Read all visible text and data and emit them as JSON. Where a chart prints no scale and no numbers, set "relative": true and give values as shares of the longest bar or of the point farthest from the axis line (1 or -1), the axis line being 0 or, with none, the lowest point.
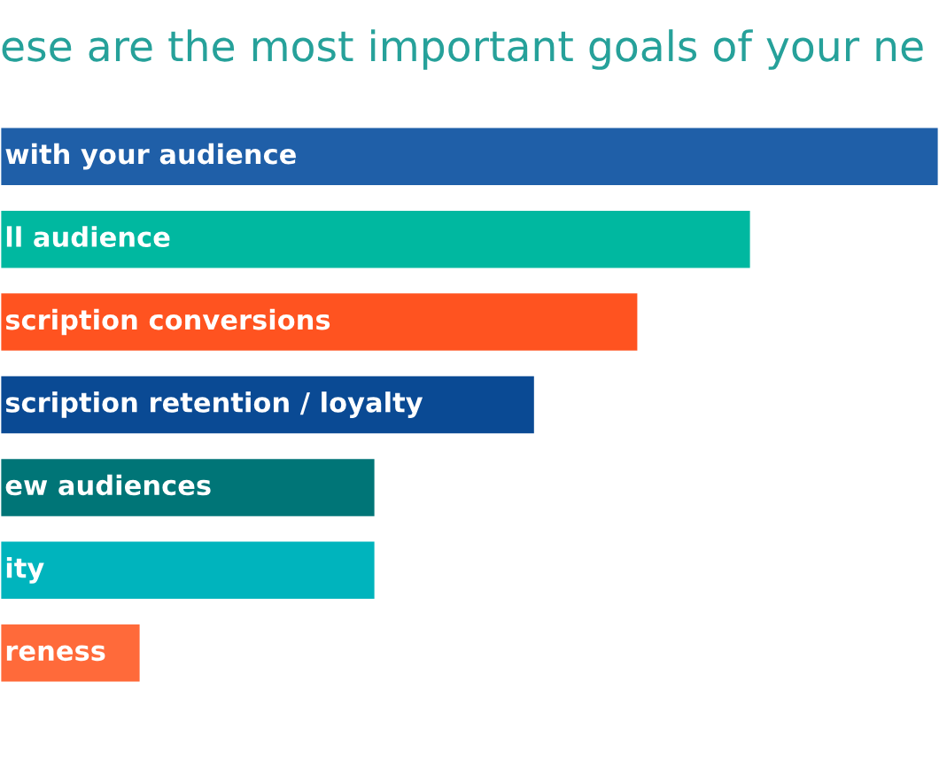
{
  "chart_data": {
    "type": "bar",
    "orientation": "horizontal",
    "relative": true,
    "title": "ese are the most important goals of your ne",
    "categories": [
      "with your audience",
      "ll audience",
      "scription conversions",
      "scription retention / loyalty",
      "ew audiences",
      "ity",
      "reness"
    ],
    "values": [
      1,
      0.8,
      0.68,
      0.57,
      0.4,
      0.4,
      0.15
    ],
    "colors": [
      "#1f5fa8",
      "#00b8a0",
      "#ff5320",
      "#0a4a94",
      "#007577",
      "#00b4bd",
      "#ff6a3a"
    ]
  }
}
